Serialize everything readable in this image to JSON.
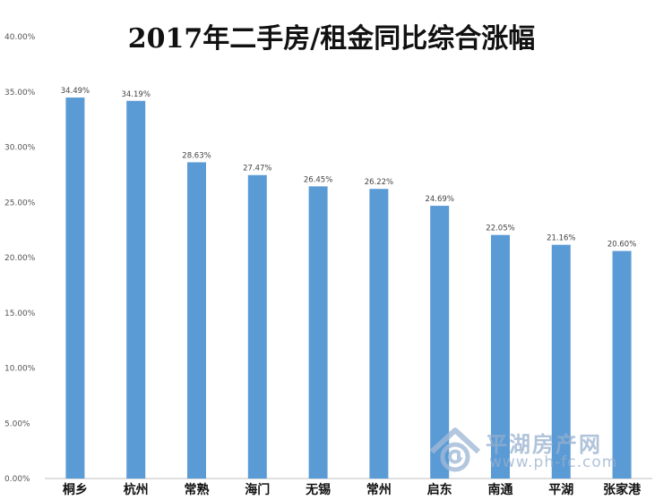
{
  "chart_data": {
    "type": "bar",
    "title": "2017年二手房/租金同比综合涨幅",
    "categories": [
      "桐乡",
      "杭州",
      "常熟",
      "海门",
      "无锡",
      "常州",
      "启东",
      "南通",
      "平湖",
      "张家港"
    ],
    "values": [
      34.49,
      34.19,
      28.63,
      27.47,
      26.45,
      26.22,
      24.69,
      22.05,
      21.16,
      20.6
    ],
    "data_labels": [
      "34.49%",
      "34.19%",
      "28.63%",
      "27.47%",
      "26.45%",
      "26.22%",
      "24.69%",
      "22.05%",
      "21.16%",
      "20.60%"
    ],
    "ylim": [
      0,
      40
    ],
    "yticks": [
      "0.00%",
      "5.00%",
      "10.00%",
      "15.00%",
      "20.00%",
      "25.00%",
      "30.00%",
      "35.00%",
      "40.00%"
    ],
    "grid": false,
    "bar_color": "#5b9bd5",
    "xlabel": "",
    "ylabel": ""
  },
  "watermark": {
    "site_name": "平湖房产网",
    "url": "www.ph-fc.com"
  }
}
